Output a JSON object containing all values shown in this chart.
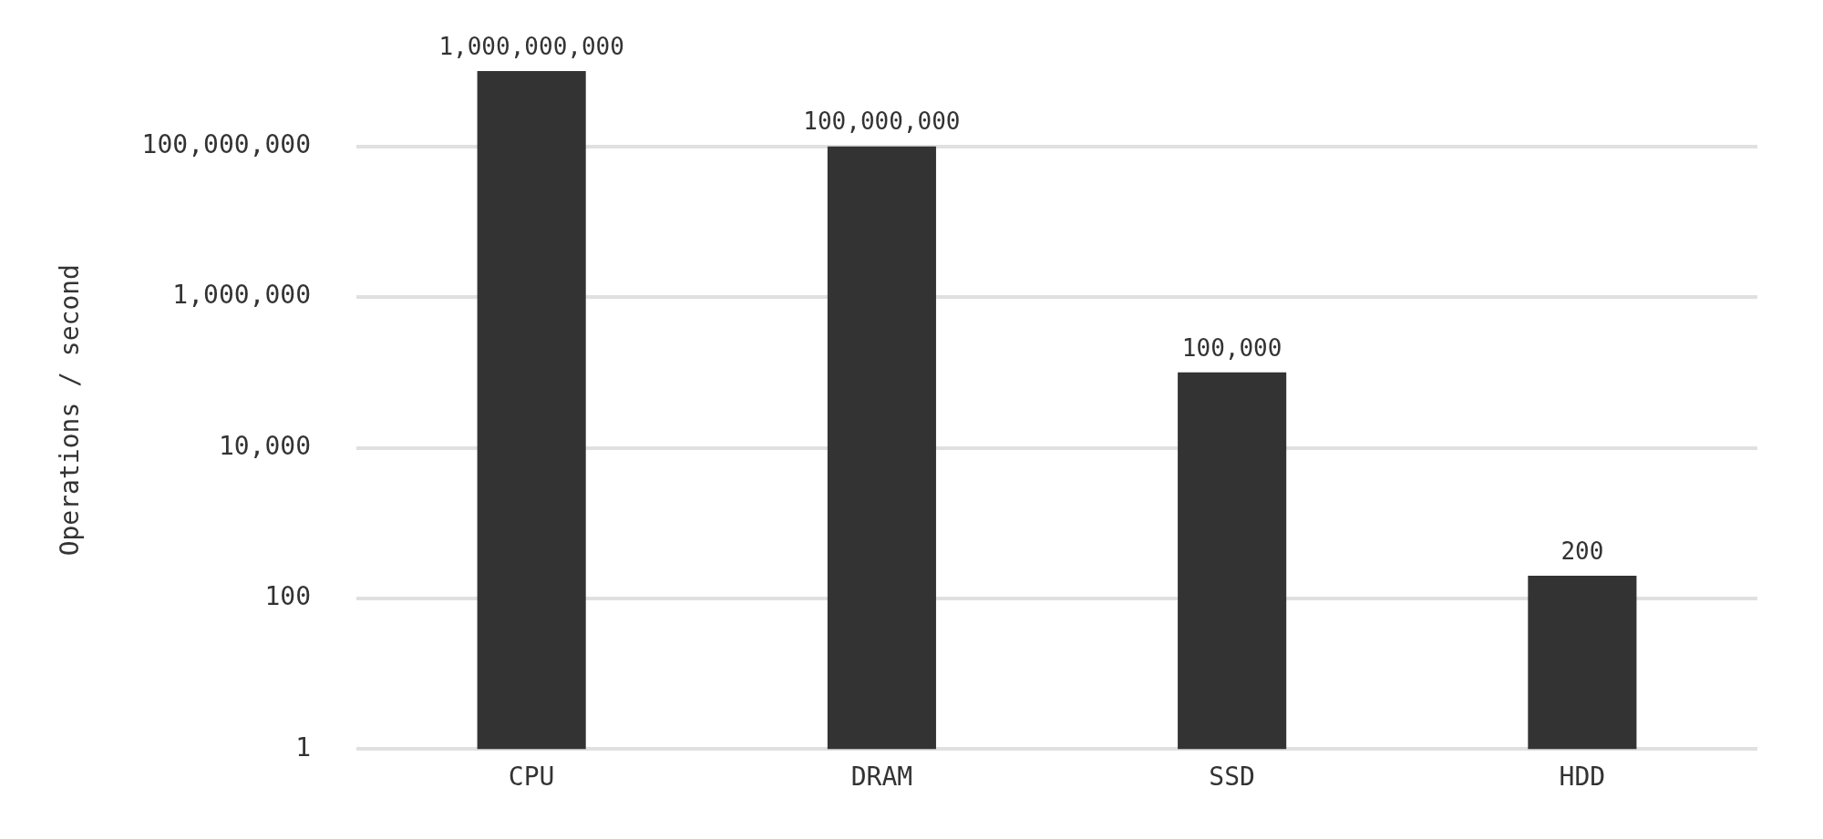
{
  "chart_data": {
    "type": "bar",
    "ylabel": "Operations / second",
    "categories": [
      "CPU",
      "DRAM",
      "SSD",
      "HDD"
    ],
    "values": [
      1000000000,
      100000000,
      100000,
      200
    ],
    "value_labels": [
      "1,000,000,000",
      "100,000,000",
      "100,000",
      "200"
    ],
    "color": "#333333",
    "log": "y",
    "ylim": [
      1,
      1000000000
    ],
    "yticks": [
      1,
      {
        "value": 100,
        "label": "100"
      },
      {
        "value": 10000,
        "label": "10,000"
      },
      {
        "value": 1000000,
        "label": "1,000,000"
      },
      {
        "value": 100000000,
        "label": "100,000,000"
      }
    ],
    "grid": "y",
    "legend": false
  }
}
